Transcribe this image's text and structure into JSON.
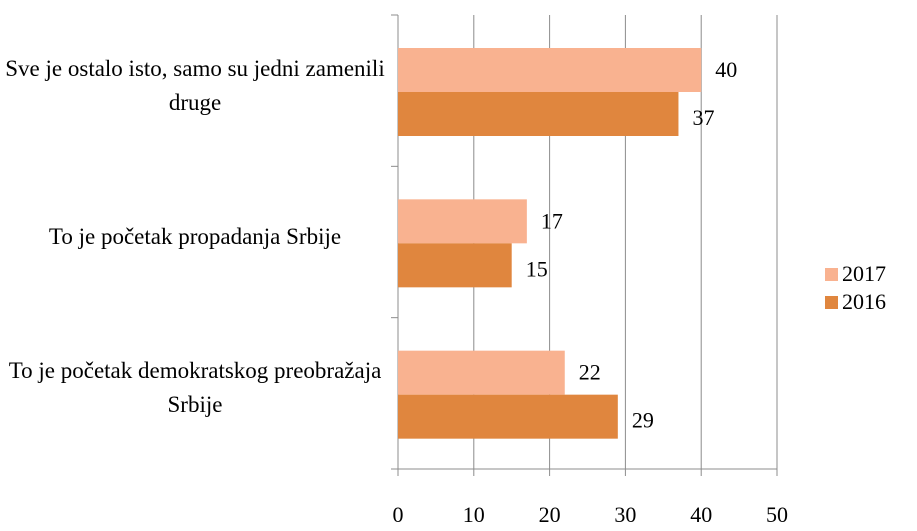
{
  "chart_data": {
    "type": "hbar",
    "categories": [
      "Sve je ostalo isto, samo su jedni zamenili druge",
      "To je početak propadanja Srbije",
      "To je početak demokratskog preobražaja Srbije"
    ],
    "series": [
      {
        "name": "2017",
        "color": "#f9b290",
        "values": [
          40,
          17,
          22
        ]
      },
      {
        "name": "2016",
        "color": "#e0863e",
        "values": [
          37,
          15,
          29
        ]
      }
    ],
    "xlim": [
      0,
      50
    ],
    "xticks": [
      0,
      10,
      20,
      30,
      40,
      50
    ],
    "grid": true,
    "legend": "right"
  }
}
